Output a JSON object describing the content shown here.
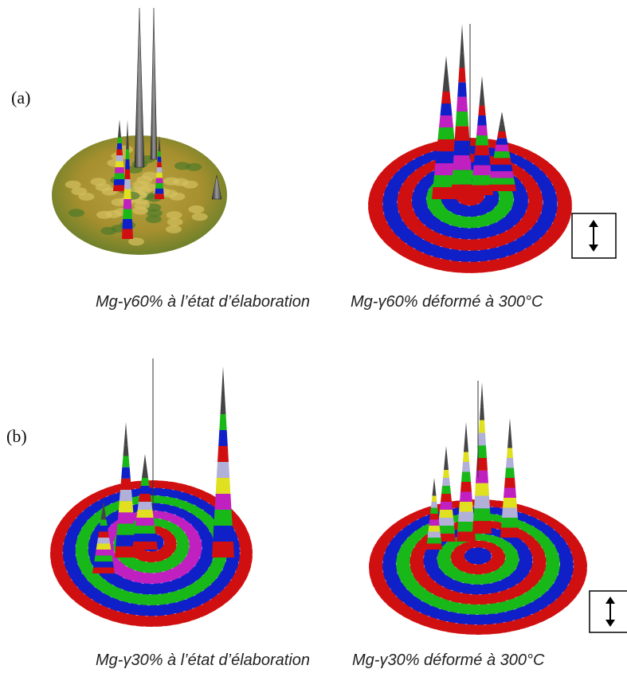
{
  "panels": [
    {
      "label": "(a)",
      "left_caption": "Mg-γ60% à l’état d’élaboration",
      "right_caption": "Mg-γ60% déformé à 300°C"
    },
    {
      "label": "(b)",
      "left_caption": "Mg-γ30% à l’état d’élaboration",
      "right_caption": "Mg-γ30% déformé à 300°C"
    }
  ]
}
